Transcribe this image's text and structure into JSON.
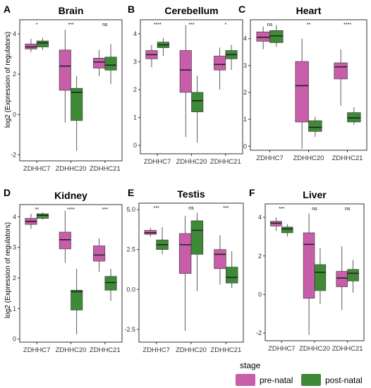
{
  "ylabel": "log2 (Expression of regulators)",
  "colors": {
    "pre_natal": "#C85DAA",
    "post_natal": "#3E8A36",
    "median": "#222222",
    "whisker": "#333333",
    "panel_border": "#333333"
  },
  "legend": {
    "title": "stage",
    "items": [
      {
        "label": "pre-natal",
        "color": "#C85DAA"
      },
      {
        "label": "post-natal",
        "color": "#3E8A36"
      }
    ],
    "placement": "bottom-right"
  },
  "chart_data": [
    {
      "type": "boxplot",
      "letter": "A",
      "title": "Brain",
      "categories": [
        "ZDHHC7",
        "ZDHHC20",
        "ZDHHC21"
      ],
      "ylim": [
        -2.3,
        4.7
      ],
      "yticks": [
        -2,
        0,
        2,
        4
      ],
      "significance": [
        "*",
        "***",
        "ns"
      ],
      "series": [
        {
          "stage": "pre-natal",
          "boxes": [
            {
              "min": 3.1,
              "q1": 3.25,
              "median": 3.35,
              "q3": 3.5,
              "max": 3.75
            },
            {
              "min": -0.4,
              "q1": 1.2,
              "median": 2.4,
              "q3": 3.2,
              "max": 4.2
            },
            {
              "min": 1.9,
              "q1": 2.3,
              "median": 2.6,
              "q3": 2.8,
              "max": 3.2
            }
          ]
        },
        {
          "stage": "post-natal",
          "boxes": [
            {
              "min": 3.2,
              "q1": 3.35,
              "median": 3.55,
              "q3": 3.65,
              "max": 3.8
            },
            {
              "min": -1.8,
              "q1": -0.3,
              "median": 1.1,
              "q3": 1.3,
              "max": 1.9
            },
            {
              "min": 1.5,
              "q1": 2.2,
              "median": 2.45,
              "q3": 2.85,
              "max": 3.5
            }
          ]
        }
      ]
    },
    {
      "type": "boxplot",
      "letter": "B",
      "title": "Cerebellum",
      "categories": [
        "ZDHHC7",
        "ZDHHC20",
        "ZDHHC21"
      ],
      "ylim": [
        -0.3,
        4.5
      ],
      "yticks": [
        0,
        1,
        2,
        3,
        4
      ],
      "significance": [
        "****",
        "***",
        "*"
      ],
      "series": [
        {
          "stage": "pre-natal",
          "boxes": [
            {
              "min": 2.8,
              "q1": 3.1,
              "median": 3.25,
              "q3": 3.4,
              "max": 3.6
            },
            {
              "min": 0.3,
              "q1": 1.9,
              "median": 2.7,
              "q3": 3.4,
              "max": 4.3
            },
            {
              "min": 2.0,
              "q1": 2.7,
              "median": 2.9,
              "q3": 3.2,
              "max": 3.5
            }
          ]
        },
        {
          "stage": "post-natal",
          "boxes": [
            {
              "min": 3.2,
              "q1": 3.5,
              "median": 3.6,
              "q3": 3.7,
              "max": 3.85
            },
            {
              "min": 0.1,
              "q1": 1.2,
              "median": 1.6,
              "q3": 1.9,
              "max": 2.5
            },
            {
              "min": 2.7,
              "q1": 3.1,
              "median": 3.25,
              "q3": 3.4,
              "max": 3.6
            }
          ]
        }
      ]
    },
    {
      "type": "boxplot",
      "letter": "C",
      "title": "Heart",
      "categories": [
        "ZDHHC7",
        "ZDHHC20",
        "ZDHHC21"
      ],
      "ylim": [
        -0.15,
        4.7
      ],
      "yticks": [
        0,
        1,
        2,
        3,
        4
      ],
      "significance": [
        "ns",
        "**",
        "****"
      ],
      "series": [
        {
          "stage": "pre-natal",
          "boxes": [
            {
              "min": 3.6,
              "q1": 3.9,
              "median": 4.05,
              "q3": 4.25,
              "max": 4.45
            },
            {
              "min": -0.1,
              "q1": 0.9,
              "median": 2.25,
              "q3": 3.15,
              "max": 4.0
            },
            {
              "min": 1.5,
              "q1": 2.5,
              "median": 2.95,
              "q3": 3.1,
              "max": 3.6
            }
          ]
        },
        {
          "stage": "post-natal",
          "boxes": [
            {
              "min": 3.7,
              "q1": 3.85,
              "median": 4.1,
              "q3": 4.3,
              "max": 4.5
            },
            {
              "min": 0.35,
              "q1": 0.55,
              "median": 0.7,
              "q3": 0.95,
              "max": 1.1
            },
            {
              "min": 0.8,
              "q1": 0.9,
              "median": 1.05,
              "q3": 1.25,
              "max": 1.45
            }
          ]
        }
      ]
    },
    {
      "type": "boxplot",
      "letter": "D",
      "title": "Kidney",
      "categories": [
        "ZDHHC7",
        "ZDHHC20",
        "ZDHHC21"
      ],
      "ylim": [
        -0.1,
        4.4
      ],
      "yticks": [
        0,
        1,
        2,
        3,
        4
      ],
      "significance": [
        "**",
        "****",
        "***"
      ],
      "series": [
        {
          "stage": "pre-natal",
          "boxes": [
            {
              "min": 3.6,
              "q1": 3.75,
              "median": 3.85,
              "q3": 3.95,
              "max": 4.1
            },
            {
              "min": 2.5,
              "q1": 2.95,
              "median": 3.25,
              "q3": 3.5,
              "max": 4.2
            },
            {
              "min": 2.2,
              "q1": 2.55,
              "median": 2.75,
              "q3": 3.05,
              "max": 3.3
            }
          ]
        },
        {
          "stage": "post-natal",
          "boxes": [
            {
              "min": 3.9,
              "q1": 3.95,
              "median": 4.05,
              "q3": 4.1,
              "max": 4.15
            },
            {
              "min": 0.15,
              "q1": 0.95,
              "median": 1.55,
              "q3": 1.6,
              "max": 2.3
            },
            {
              "min": 1.25,
              "q1": 1.6,
              "median": 1.85,
              "q3": 2.05,
              "max": 2.3
            }
          ]
        }
      ]
    },
    {
      "type": "boxplot",
      "letter": "E",
      "title": "Testis",
      "categories": [
        "ZDHHC7",
        "ZDHHC20",
        "ZDHHC21"
      ],
      "ylim": [
        -3.3,
        5.4
      ],
      "yticks": [
        -2.5,
        0.0,
        2.5,
        5.0
      ],
      "significance": [
        "***",
        "ns",
        "***"
      ],
      "series": [
        {
          "stage": "pre-natal",
          "boxes": [
            {
              "min": 3.3,
              "q1": 3.45,
              "median": 3.55,
              "q3": 3.7,
              "max": 3.85
            },
            {
              "min": -2.6,
              "q1": 1.0,
              "median": 2.8,
              "q3": 3.5,
              "max": 4.6
            },
            {
              "min": 0.3,
              "q1": 1.3,
              "median": 2.2,
              "q3": 2.5,
              "max": 3.4
            }
          ]
        },
        {
          "stage": "post-natal",
          "boxes": [
            {
              "min": 2.2,
              "q1": 2.5,
              "median": 2.8,
              "q3": 3.1,
              "max": 3.9
            },
            {
              "min": -0.1,
              "q1": 2.2,
              "median": 3.7,
              "q3": 4.3,
              "max": 4.8
            },
            {
              "min": 0.1,
              "q1": 0.4,
              "median": 0.75,
              "q3": 1.4,
              "max": 2.4
            }
          ]
        }
      ]
    },
    {
      "type": "boxplot",
      "letter": "F",
      "title": "Liver",
      "categories": [
        "ZDHHC7",
        "ZDHHC20",
        "ZDHHC21"
      ],
      "ylim": [
        -2.4,
        4.7
      ],
      "yticks": [
        -2,
        0,
        2,
        4
      ],
      "significance": [
        "***",
        "ns",
        "ns"
      ],
      "series": [
        {
          "stage": "pre-natal",
          "boxes": [
            {
              "min": 3.3,
              "q1": 3.55,
              "median": 3.7,
              "q3": 3.8,
              "max": 4.0
            },
            {
              "min": -2.1,
              "q1": -0.2,
              "median": 2.6,
              "q3": 3.2,
              "max": 4.2
            },
            {
              "min": -0.8,
              "q1": 0.4,
              "median": 0.85,
              "q3": 1.2,
              "max": 2.5
            }
          ]
        },
        {
          "stage": "post-natal",
          "boxes": [
            {
              "min": 3.0,
              "q1": 3.2,
              "median": 3.4,
              "q3": 3.5,
              "max": 3.65
            },
            {
              "min": -0.5,
              "q1": 0.2,
              "median": 1.15,
              "q3": 1.55,
              "max": 2.4
            },
            {
              "min": 0.1,
              "q1": 0.7,
              "median": 1.1,
              "q3": 1.3,
              "max": 1.8
            }
          ]
        }
      ]
    }
  ]
}
